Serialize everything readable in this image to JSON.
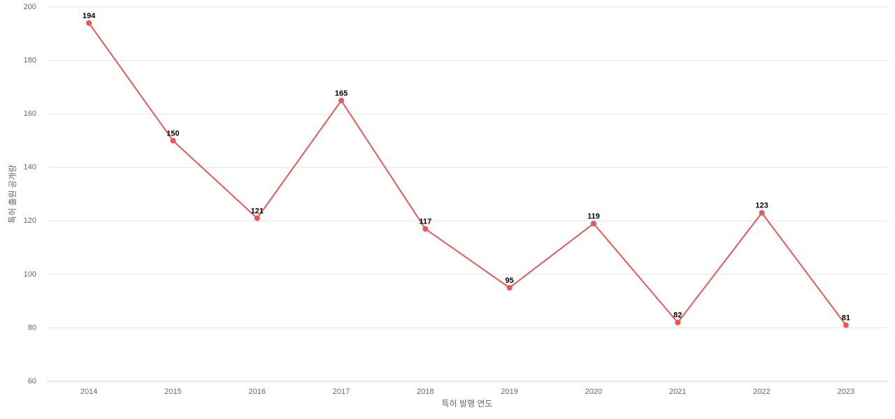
{
  "chart_data": {
    "type": "line",
    "x_label": "특허 발행 연도",
    "y_label": "특허 출원 공개량",
    "categories": [
      "2014",
      "2015",
      "2016",
      "2017",
      "2018",
      "2019",
      "2020",
      "2021",
      "2022",
      "2023"
    ],
    "series": [
      {
        "name": "특허 출원 공개량",
        "color": "#e85858",
        "values": [
          194,
          150,
          121,
          165,
          117,
          95,
          119,
          82,
          123,
          81
        ]
      }
    ],
    "ylim": [
      60,
      200
    ],
    "yticks": [
      60,
      80,
      100,
      120,
      140,
      160,
      180,
      200
    ],
    "grid": true
  }
}
